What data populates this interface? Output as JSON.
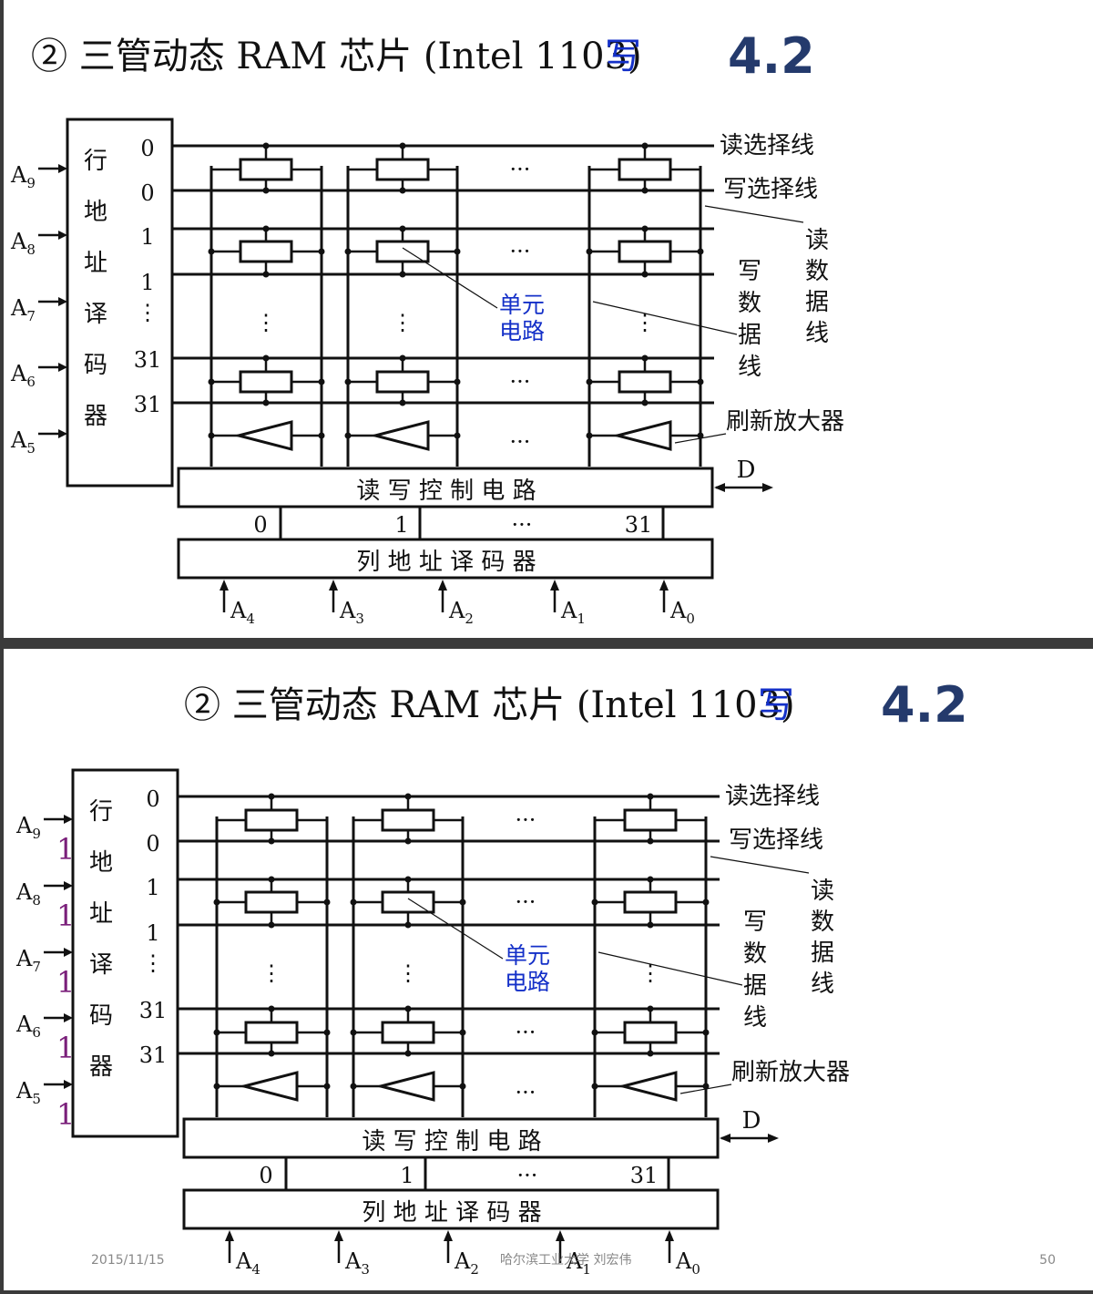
{
  "title": {
    "prefix": "② 三管动态 RAM 芯片 (Intel 1103)",
    "highlight": "写",
    "version": "4.2"
  },
  "row_decoder": {
    "label_chars": [
      "行",
      "地",
      "址",
      "译",
      "码",
      "器"
    ],
    "outputs": [
      "0",
      "0",
      "1",
      "1",
      "⋮",
      "31",
      "31"
    ]
  },
  "row_address_inputs": [
    {
      "main": "A",
      "sub": "9"
    },
    {
      "main": "A",
      "sub": "8"
    },
    {
      "main": "A",
      "sub": "7"
    },
    {
      "main": "A",
      "sub": "6"
    },
    {
      "main": "A",
      "sub": "5"
    }
  ],
  "row_address_values": [
    "1",
    "1",
    "1",
    "1",
    "1"
  ],
  "lines": {
    "read_select": "读选择线",
    "write_select": "写选择线",
    "read_data": [
      "读",
      "数",
      "据",
      "线"
    ],
    "write_data": [
      "写",
      "数",
      "据",
      "线"
    ],
    "cell": [
      "单元",
      "电路"
    ],
    "refresh_amp": "刷新放大器"
  },
  "rw_control": {
    "label": "读 写 控 制 电 路",
    "data_pin": "D"
  },
  "column_select": {
    "labels": [
      "0",
      "1",
      "···",
      "31"
    ]
  },
  "column_decoder": {
    "label": "列 地 址 译 码 器"
  },
  "column_address_inputs": [
    {
      "main": "A",
      "sub": "4"
    },
    {
      "main": "A",
      "sub": "3"
    },
    {
      "main": "A",
      "sub": "2"
    },
    {
      "main": "A",
      "sub": "1"
    },
    {
      "main": "A",
      "sub": "0"
    }
  ],
  "ellipsis": "···",
  "vdots": "⋮",
  "footer": {
    "date": "2015/11/15",
    "center": "哈尔滨工业大学  刘宏伟",
    "page": "50"
  }
}
